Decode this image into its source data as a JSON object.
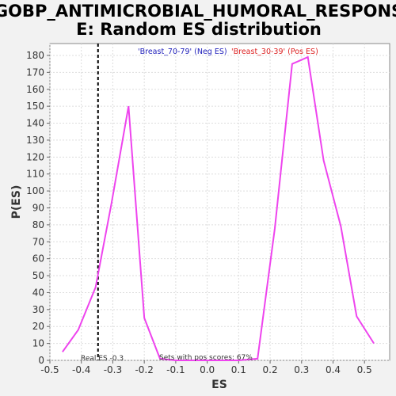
{
  "chart_data": {
    "type": "line",
    "title_lines": [
      "GOBP_ANTIMICROBIAL_HUMORAL_RESPONS",
      "E: Random ES distribution"
    ],
    "xlabel": "ES",
    "ylabel": "P(ES)",
    "xlim": [
      -0.5,
      0.58
    ],
    "ylim": [
      0,
      187
    ],
    "grid": true,
    "x_ticks": [
      -0.5,
      -0.4,
      -0.3,
      -0.2,
      -0.1,
      0.0,
      0.1,
      0.2,
      0.3,
      0.4,
      0.5
    ],
    "x_tick_labels": [
      "-0.5",
      "-0.4",
      "-0.3",
      "-0.2",
      "-0.1",
      "0.0",
      "0.1",
      "0.2",
      "0.3",
      "0.4",
      "0.5"
    ],
    "y_ticks": [
      0,
      10,
      20,
      30,
      40,
      50,
      60,
      70,
      80,
      90,
      100,
      110,
      120,
      130,
      140,
      150,
      160,
      170,
      180
    ],
    "y_tick_labels": [
      "0",
      "10",
      "20",
      "30",
      "40",
      "50",
      "60",
      "70",
      "80",
      "90",
      "100",
      "110",
      "120",
      "130",
      "140",
      "150",
      "160",
      "170",
      "180"
    ],
    "series": [
      {
        "color": "#ee44ee",
        "x": [
          -0.46,
          -0.41,
          -0.355,
          -0.305,
          -0.25,
          -0.2,
          -0.15,
          -0.1,
          -0.05,
          0.0,
          0.05,
          0.1,
          0.16,
          0.215,
          0.27,
          0.32,
          0.37,
          0.425,
          0.475,
          0.53
        ],
        "y": [
          5,
          18,
          43,
          92,
          150,
          25,
          1,
          0,
          0,
          0,
          0,
          0,
          1,
          78,
          175,
          179,
          118,
          79,
          26,
          10
        ]
      }
    ],
    "legend": {
      "neg": {
        "text": "'Breast_70-79' (Neg ES)",
        "color": "#2222bb"
      },
      "pos": {
        "text": "'Breast_30-39' (Pos ES)",
        "color": "#dd2222"
      }
    },
    "real_es": {
      "value": -0.347,
      "label": "Real ES -0.3"
    },
    "pos_scores_label": "Sets with pos scores: 67%"
  }
}
